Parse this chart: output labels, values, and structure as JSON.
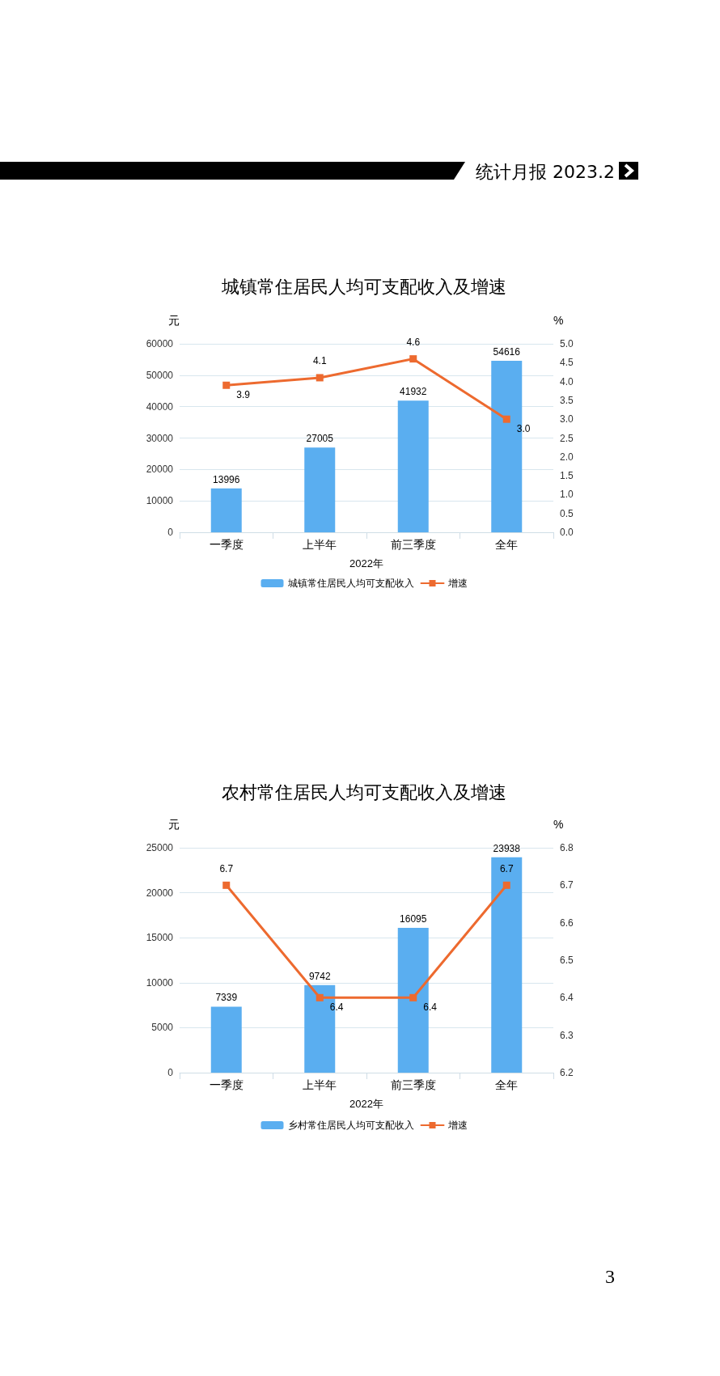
{
  "chart_data": [
    {
      "type": "bar",
      "title": "城镇常住居民人均可支配收入及增速",
      "annotations": [
        "统计月报 2023.2"
      ],
      "xlabel": "2022年",
      "ylabel": "元",
      "y2label": "%",
      "categories": [
        "一季度",
        "上半年",
        "前三季度",
        "全年"
      ],
      "series": [
        {
          "name": "城镇常住居民人均可支配收入",
          "color": "#5aaef0",
          "values": [
            13996,
            27005,
            41932,
            54616
          ]
        },
        {
          "name": "增速",
          "type": "line",
          "axis": "y2",
          "color": "#ed6a2f",
          "values": [
            3.9,
            4.1,
            4.6,
            3.0
          ],
          "value_labels": [
            "3.9",
            "4.1",
            "4.6",
            "3.0"
          ]
        }
      ],
      "ylim": [
        0,
        60000
      ],
      "yticks": [
        0,
        10000,
        20000,
        30000,
        40000,
        50000,
        60000
      ],
      "y2lim": [
        0,
        5
      ],
      "y2ticks": [
        {
          "value": 0,
          "label": "0.0"
        },
        0.5,
        {
          "value": 1,
          "label": "1.0"
        },
        1.5,
        {
          "value": 2,
          "label": "2.0"
        },
        2.5,
        {
          "value": 3,
          "label": "3.0"
        },
        3.5,
        {
          "value": 4,
          "label": "4.0"
        },
        4.5,
        {
          "value": 5,
          "label": "5.0"
        }
      ],
      "grid": "y",
      "legend": "bottom",
      "marker": "square",
      "data_labels": true
    },
    {
      "type": "bar",
      "title": "农村常住居民人均可支配收入及增速",
      "annotations": [
        "3"
      ],
      "xlabel": "2022年",
      "ylabel": "元",
      "y2label": "%",
      "categories": [
        "一季度",
        "上半年",
        "前三季度",
        "全年"
      ],
      "series": [
        {
          "name": "乡村常住居民人均可支配收入",
          "color": "#5aaef0",
          "values": [
            7339,
            9742,
            16095,
            23938
          ]
        },
        {
          "name": "增速",
          "type": "line",
          "axis": "y2",
          "color": "#ed6a2f",
          "values": [
            6.7,
            6.4,
            6.4,
            6.7
          ]
        }
      ],
      "ylim": [
        0,
        25000
      ],
      "yticks": [
        0,
        5000,
        10000,
        15000,
        20000,
        25000
      ],
      "y2lim": [
        6.2,
        6.8
      ],
      "y2ticks": [
        6.2,
        6.3,
        6.4,
        6.5,
        6.6,
        6.7,
        6.8
      ],
      "grid": "y",
      "legend": "bottom",
      "marker": "square",
      "data_labels": true
    }
  ]
}
